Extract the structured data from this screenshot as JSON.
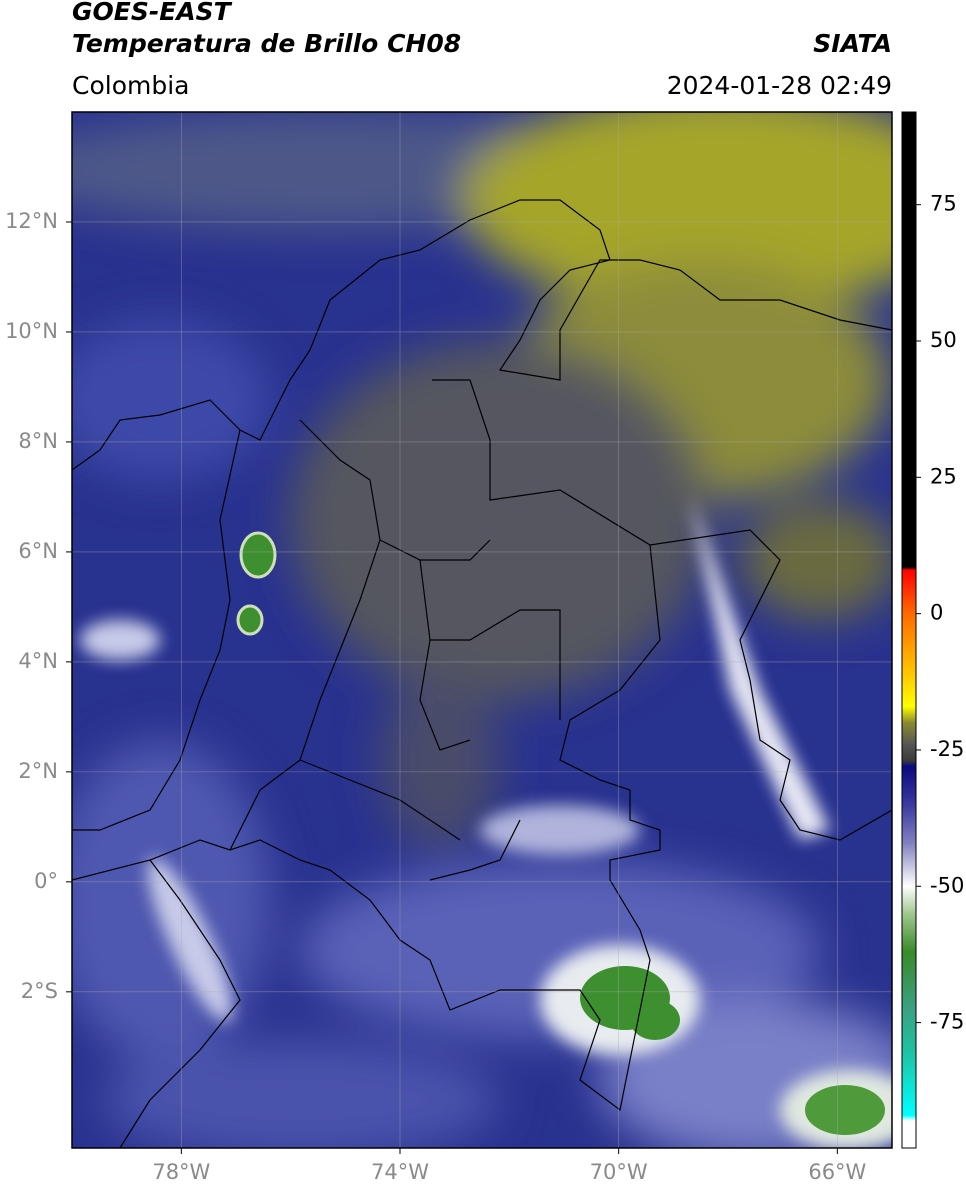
{
  "title_line1": "GOES-EAST",
  "title_line2": "Temperatura de Brillo CH08",
  "source": "SIATA",
  "region": "Colombia",
  "datetime": "2024-01-28 02:49",
  "map": {
    "xlim": [
      -80,
      -65
    ],
    "ylim": [
      -4.84,
      14
    ],
    "grid": true,
    "xticks": [
      {
        "value": -78,
        "label": "78°W"
      },
      {
        "value": -74,
        "label": "74°W"
      },
      {
        "value": -70,
        "label": "70°W"
      },
      {
        "value": -66,
        "label": "66°W"
      }
    ],
    "yticks": [
      {
        "value": 12,
        "label": "12°N"
      },
      {
        "value": 10,
        "label": "10°N"
      },
      {
        "value": 8,
        "label": "8°N"
      },
      {
        "value": 6,
        "label": "6°N"
      },
      {
        "value": 4,
        "label": "4°N"
      },
      {
        "value": 2,
        "label": "2°N"
      },
      {
        "value": 0,
        "label": "0°"
      },
      {
        "value": -2,
        "label": "2°S"
      }
    ]
  },
  "colorbar": {
    "lim": [
      -98,
      92
    ],
    "ticks": [
      75,
      50,
      25,
      0,
      -25,
      -50,
      -75
    ],
    "stops": [
      {
        "value": 92,
        "color": "#000000"
      },
      {
        "value": 8.5,
        "color": "#000000"
      },
      {
        "value": 8,
        "color": "#ff0000"
      },
      {
        "value": 0,
        "color": "#ff6a00"
      },
      {
        "value": -12,
        "color": "#ffd000"
      },
      {
        "value": -17,
        "color": "#ffff00"
      },
      {
        "value": -20,
        "color": "#8a8a30"
      },
      {
        "value": -24,
        "color": "#555555"
      },
      {
        "value": -27,
        "color": "#3a3a3a"
      },
      {
        "value": -28,
        "color": "#0a0a80"
      },
      {
        "value": -35,
        "color": "#3a3aa0"
      },
      {
        "value": -42,
        "color": "#8080c0"
      },
      {
        "value": -50,
        "color": "#ffffff"
      },
      {
        "value": -55,
        "color": "#a0c890"
      },
      {
        "value": -62,
        "color": "#3a8a2a"
      },
      {
        "value": -72,
        "color": "#3aa080"
      },
      {
        "value": -80,
        "color": "#20c0a0"
      },
      {
        "value": -92,
        "color": "#00ffff"
      },
      {
        "value": -93,
        "color": "#ffffff"
      },
      {
        "value": -98,
        "color": "#ffffff"
      }
    ]
  }
}
